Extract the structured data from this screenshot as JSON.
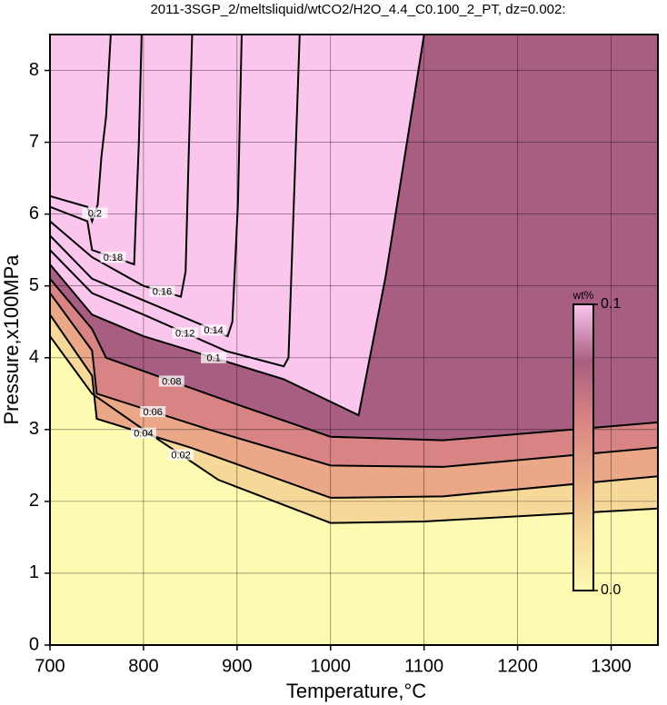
{
  "chart_data": {
    "type": "contour",
    "title": "2011-3SGP_2/meltsliquid/wtCO2/H2O_4.4_C0.100_2_PT, dz=0.002:",
    "x_label": "Temperature,°C",
    "y_label": "Pressure,x100MPa",
    "xlim": [
      700,
      1350
    ],
    "ylim": [
      0,
      8.5
    ],
    "xticks": [
      700,
      800,
      900,
      1000,
      1100,
      1200,
      1300
    ],
    "yticks": [
      0,
      1,
      2,
      3,
      4,
      5,
      6,
      7,
      8
    ],
    "grid": true,
    "line_color": "#000000",
    "colorbar": {
      "title": "wt%",
      "clim": [
        0,
        0.1
      ],
      "ticks": [
        {
          "value": 0,
          "label": "0.0"
        },
        {
          "value": 0.1,
          "label": "0.1"
        }
      ],
      "colors": [
        "#fdfab2",
        "#f6d898",
        "#eaa888",
        "#d88484",
        "#a85e80",
        "#fbc6ee"
      ]
    },
    "contours": [
      {
        "level": 0.02,
        "x": [
          700,
          745,
          800,
          880,
          1000,
          1100,
          1350
        ],
        "y": [
          4.3,
          3.5,
          3.0,
          2.3,
          1.7,
          1.72,
          1.9
        ]
      },
      {
        "level": 0.04,
        "x": [
          700,
          745,
          750,
          850,
          1000,
          1120,
          1350
        ],
        "y": [
          4.6,
          3.75,
          3.15,
          2.75,
          2.05,
          2.07,
          2.35
        ]
      },
      {
        "level": 0.06,
        "x": [
          700,
          745,
          750,
          870,
          1000,
          1120,
          1350
        ],
        "y": [
          4.9,
          4.1,
          3.5,
          3.0,
          2.5,
          2.48,
          2.75
        ]
      },
      {
        "level": 0.08,
        "x": [
          700,
          745,
          760,
          900,
          1000,
          1120,
          1350
        ],
        "y": [
          5.1,
          4.4,
          4.0,
          3.35,
          2.9,
          2.85,
          3.1
        ]
      },
      {
        "level": 0.1,
        "x": [
          700,
          745,
          800,
          950,
          1030,
          1059,
          1100
        ],
        "y": [
          5.3,
          4.6,
          4.3,
          3.7,
          3.2,
          5.14,
          8.5
        ]
      },
      {
        "level": 0.12,
        "x": [
          700,
          745,
          800,
          889,
          950,
          955,
          967
        ],
        "y": [
          5.5,
          4.9,
          4.6,
          4.09,
          3.88,
          4.0,
          8.5
        ]
      },
      {
        "level": 0.14,
        "x": [
          700,
          745,
          860,
          890,
          895,
          901,
          905
        ],
        "y": [
          5.7,
          5.1,
          4.47,
          4.3,
          4.5,
          6.16,
          8.5
        ]
      },
      {
        "level": 0.16,
        "x": [
          700,
          745,
          800,
          840,
          845,
          848,
          852
        ],
        "y": [
          5.9,
          5.4,
          5.0,
          4.85,
          5.2,
          6.67,
          8.5
        ]
      },
      {
        "level": 0.18,
        "x": [
          700,
          740,
          745,
          790,
          792,
          795,
          798
        ],
        "y": [
          6.1,
          5.9,
          5.5,
          5.3,
          6.0,
          6.98,
          8.5
        ]
      },
      {
        "level": 0.2,
        "x": [
          700,
          740,
          745,
          751,
          755,
          760,
          765
        ],
        "y": [
          6.25,
          6.1,
          5.9,
          6.13,
          6.8,
          7.36,
          8.5
        ]
      }
    ]
  }
}
